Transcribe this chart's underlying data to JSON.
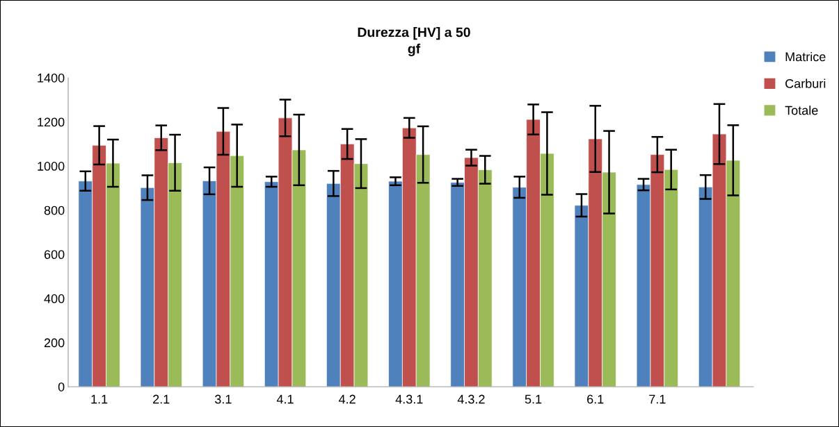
{
  "chart_data": {
    "type": "bar",
    "title": "Durezza [HV] a 50\ngf",
    "categories": [
      "1.1",
      "2.1",
      "3.1",
      "4.1",
      "4.2",
      "4.3.1",
      "4.3.2",
      "5.1",
      "6.1",
      "7.1",
      null
    ],
    "series": [
      {
        "name": "Matrice",
        "color": "#4f81bd",
        "values": [
          932,
          902,
          933,
          929,
          921,
          931,
          926,
          904,
          822,
          916,
          905
        ],
        "errors": [
          44,
          56,
          61,
          23,
          57,
          18,
          16,
          48,
          51,
          26,
          54
        ]
      },
      {
        "name": "Carburi",
        "color": "#c0504d",
        "values": [
          1094,
          1128,
          1157,
          1218,
          1100,
          1173,
          1038,
          1211,
          1123,
          1052,
          1145
        ],
        "errors": [
          87,
          56,
          106,
          83,
          68,
          45,
          36,
          68,
          150,
          80,
          136
        ]
      },
      {
        "name": "Totale",
        "color": "#9bbb59",
        "values": [
          1013,
          1015,
          1047,
          1073,
          1011,
          1052,
          983,
          1057,
          972,
          984,
          1026
        ],
        "errors": [
          107,
          127,
          141,
          160,
          111,
          128,
          63,
          187,
          187,
          90,
          159
        ]
      }
    ],
    "ylim": [
      0,
      1400
    ],
    "yticks": [
      0,
      200,
      400,
      600,
      800,
      1000,
      1200,
      1400
    ],
    "grid": false,
    "legend": "top right"
  }
}
